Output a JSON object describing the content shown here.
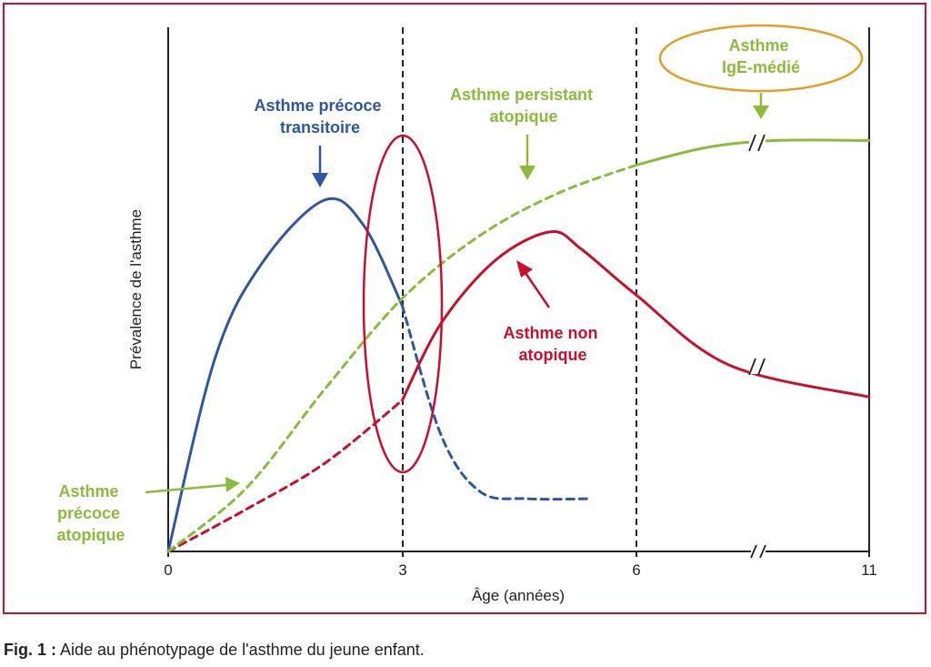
{
  "chart_data": {
    "type": "line",
    "xlabel": "Âge (années)",
    "ylabel": "Prévalence de l'asthme",
    "x_ticks": [
      "0",
      "3",
      "6",
      "11"
    ],
    "x_axis_break": true,
    "reference_lines_x": [
      "3",
      "6"
    ],
    "series": [
      {
        "label_lines": [
          "Asthme précoce",
          "transitoire"
        ],
        "color": "#2f57a0",
        "solid_points": [
          [
            0,
            0
          ],
          [
            0.6,
            0.55
          ],
          [
            1.2,
            0.82
          ],
          [
            2.0,
            1.0
          ],
          [
            2.5,
            0.93
          ],
          [
            3.0,
            0.7
          ]
        ],
        "dashed_points": [
          [
            3.0,
            0.7
          ],
          [
            3.5,
            0.33
          ],
          [
            4.0,
            0.17
          ],
          [
            4.6,
            0.15
          ],
          [
            5.4,
            0.15
          ]
        ]
      },
      {
        "label_lines": [
          "Asthme non",
          "atopique"
        ],
        "color": "#c8102e",
        "dashed_points": [
          [
            0,
            0
          ],
          [
            1.0,
            0.12
          ],
          [
            2.0,
            0.25
          ],
          [
            3.0,
            0.43
          ]
        ],
        "solid_points": [
          [
            3.0,
            0.43
          ],
          [
            3.5,
            0.65
          ],
          [
            4.2,
            0.83
          ],
          [
            4.9,
            0.91
          ],
          [
            5.3,
            0.86
          ],
          [
            6.0,
            0.73
          ],
          [
            8.0,
            0.53
          ],
          [
            11.0,
            0.44
          ]
        ]
      },
      {
        "label_lines": [
          "Asthme persistant",
          "atopique"
        ],
        "color": "#8cbb3c",
        "dashed_points": [
          [
            0,
            0
          ],
          [
            1.0,
            0.18
          ],
          [
            2.0,
            0.46
          ],
          [
            3.0,
            0.72
          ],
          [
            4.0,
            0.9
          ],
          [
            5.0,
            1.02
          ],
          [
            6.0,
            1.1
          ]
        ],
        "solid_points": [
          [
            6.0,
            1.1
          ],
          [
            7.5,
            1.15
          ],
          [
            9.0,
            1.17
          ],
          [
            11.0,
            1.17
          ]
        ]
      }
    ],
    "annotations": [
      {
        "lines": [
          "Asthme",
          "précoce",
          "atopique"
        ],
        "color": "#8cbb3c"
      },
      {
        "lines": [
          "Asthme",
          "IgE-médié"
        ],
        "color": "#8cbb3c",
        "ellipse_color": "#e0a02a"
      }
    ],
    "highlight_ellipse_color": "#c8102e"
  },
  "caption": {
    "label": "Fig. 1 :",
    "text": " Aide au phénotypage de l'asthme du jeune enfant."
  },
  "colors": {
    "frame": "#d0112b",
    "axis": "#222222"
  }
}
